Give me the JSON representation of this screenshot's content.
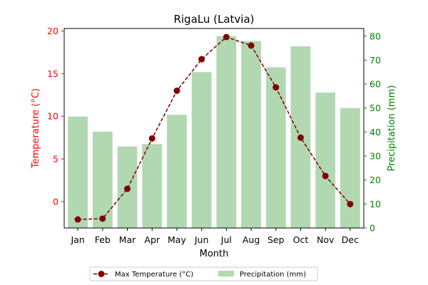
{
  "chart_data": {
    "type": "bar+line",
    "title": "RigaLu (Latvia)",
    "xlabel": "Month",
    "categories": [
      "Jan",
      "Feb",
      "Mar",
      "Apr",
      "May",
      "Jun",
      "Jul",
      "Aug",
      "Sep",
      "Oct",
      "Nov",
      "Dec"
    ],
    "left_axis": {
      "label": "Temperature (°C)",
      "color": "#ff0000",
      "ylim": [
        -3.1,
        20.3
      ],
      "ticks": [
        0,
        5,
        10,
        15,
        20
      ]
    },
    "right_axis": {
      "label": "Precipitation (mm)",
      "color": "#008000",
      "ylim": [
        0,
        83.2
      ],
      "ticks": [
        0,
        10,
        20,
        30,
        40,
        50,
        60,
        70,
        80
      ]
    },
    "series": [
      {
        "name": "Max Temperature (°C)",
        "type": "line",
        "axis": "left",
        "color": "#800000",
        "values": [
          -2.1,
          -2.0,
          1.5,
          7.4,
          13.0,
          16.7,
          19.3,
          18.3,
          13.4,
          7.5,
          3.0,
          -0.3
        ]
      },
      {
        "name": "Precipitation (mm)",
        "type": "bar",
        "axis": "right",
        "color": "#b2d8b2",
        "values": [
          46.5,
          40.2,
          34.0,
          35.0,
          47.2,
          65.0,
          80.0,
          78.0,
          67.0,
          75.8,
          56.5,
          50.0
        ]
      }
    ],
    "legend": {
      "placement": "bottom-center",
      "columns": 2
    }
  }
}
